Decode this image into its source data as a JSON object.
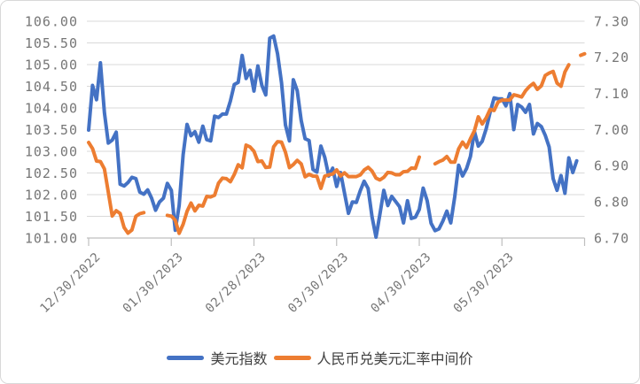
{
  "colors": {
    "background": "#ffffff",
    "border": "#d8d8d8",
    "gridline": "#d9d9d9",
    "axis_line": "#bfbfbf",
    "tick_label": "#767676",
    "legend_text": "#404040",
    "series_blue": "#4472C4",
    "series_orange": "#ED7D31"
  },
  "chart_data": {
    "type": "line",
    "grid": true,
    "legend_position": "bottom",
    "x_tick_labels": [
      "12/30/2022",
      "01/30/2023",
      "02/28/2023",
      "03/30/2023",
      "04/30/2023",
      "05/30/2023"
    ],
    "left_axis": {
      "min": 101.0,
      "max": 106.0,
      "step": 0.5,
      "ticks": [
        "106.00",
        "105.50",
        "105.00",
        "104.50",
        "104.00",
        "103.50",
        "103.00",
        "102.50",
        "102.00",
        "101.50",
        "101.00"
      ]
    },
    "right_axis": {
      "min": 6.7,
      "max": 7.3,
      "step": 0.1,
      "ticks": [
        "7.30",
        "7.20",
        "7.10",
        "7.00",
        "6.90",
        "6.80",
        "6.70"
      ]
    },
    "x_dates": [
      "12/30",
      "01/03",
      "01/04",
      "01/05",
      "01/06",
      "01/09",
      "01/10",
      "01/11",
      "01/12",
      "01/13",
      "01/16",
      "01/17",
      "01/18",
      "01/19",
      "01/20",
      "01/23",
      "01/24",
      "01/25",
      "01/26",
      "01/27",
      "01/30",
      "01/31",
      "02/01",
      "02/02",
      "02/03",
      "02/06",
      "02/07",
      "02/08",
      "02/09",
      "02/10",
      "02/13",
      "02/14",
      "02/15",
      "02/16",
      "02/17",
      "02/20",
      "02/21",
      "02/22",
      "02/23",
      "02/24",
      "02/27",
      "02/28",
      "03/01",
      "03/02",
      "03/03",
      "03/06",
      "03/07",
      "03/08",
      "03/09",
      "03/10",
      "03/13",
      "03/14",
      "03/15",
      "03/16",
      "03/17",
      "03/20",
      "03/21",
      "03/22",
      "03/23",
      "03/24",
      "03/27",
      "03/28",
      "03/29",
      "03/30",
      "03/31",
      "04/03",
      "04/04",
      "04/05",
      "04/06",
      "04/07",
      "04/10",
      "04/11",
      "04/12",
      "04/13",
      "04/14",
      "04/17",
      "04/18",
      "04/19",
      "04/20",
      "04/21",
      "04/24",
      "04/25",
      "04/26",
      "04/27",
      "04/28",
      "05/01",
      "05/02",
      "05/03",
      "05/04",
      "05/05",
      "05/08",
      "05/09",
      "05/10",
      "05/11",
      "05/12",
      "05/15",
      "05/16",
      "05/17",
      "05/18",
      "05/19",
      "05/22",
      "05/23",
      "05/24",
      "05/25",
      "05/26",
      "05/29",
      "05/30",
      "05/31",
      "06/01",
      "06/02",
      "06/05",
      "06/06",
      "06/07",
      "06/08",
      "06/09",
      "06/12",
      "06/13",
      "06/14",
      "06/15",
      "06/16",
      "06/19",
      "06/20",
      "06/21",
      "06/22",
      "06/23",
      "06/26",
      "06/27"
    ],
    "series": [
      {
        "name": "美元指数",
        "axis": "left",
        "color": "#4472C4",
        "values": [
          103.49,
          104.52,
          104.19,
          105.04,
          103.89,
          103.19,
          103.26,
          103.44,
          102.24,
          102.2,
          102.28,
          102.4,
          102.37,
          102.06,
          102.01,
          102.11,
          101.92,
          101.64,
          101.83,
          101.92,
          102.26,
          102.1,
          101.18,
          101.75,
          102.92,
          103.62,
          103.36,
          103.45,
          103.21,
          103.58,
          103.27,
          103.24,
          103.81,
          103.78,
          103.86,
          103.86,
          104.16,
          104.54,
          104.59,
          105.21,
          104.68,
          104.87,
          104.39,
          104.97,
          104.52,
          104.3,
          105.61,
          105.66,
          105.25,
          104.58,
          103.61,
          103.24,
          104.65,
          104.4,
          103.71,
          103.29,
          103.25,
          102.58,
          102.52,
          103.12,
          102.86,
          102.43,
          102.61,
          102.19,
          102.51,
          102.04,
          101.57,
          101.83,
          101.82,
          102.09,
          102.31,
          102.14,
          101.49,
          101.02,
          101.55,
          102.1,
          101.75,
          101.96,
          101.84,
          101.72,
          101.35,
          101.86,
          101.45,
          101.48,
          101.66,
          102.15,
          101.86,
          101.34,
          101.17,
          101.21,
          101.39,
          101.62,
          101.35,
          101.95,
          102.68,
          102.43,
          102.6,
          102.88,
          103.46,
          103.12,
          103.23,
          103.52,
          103.9,
          104.23,
          104.21,
          104.21,
          104.05,
          104.33,
          103.5,
          104.08,
          104.02,
          103.9,
          104.08,
          103.4,
          103.64,
          103.57,
          103.37,
          103.1,
          102.37,
          102.1,
          102.44,
          102.03,
          102.85,
          102.51,
          102.78,
          null,
          null
        ]
      },
      {
        "name": "人民币兑美元汇率中间价",
        "axis": "right",
        "color": "#ED7D31",
        "values": [
          6.9646,
          6.9475,
          6.9131,
          6.9117,
          6.8912,
          6.8265,
          6.7611,
          6.7756,
          6.768,
          6.7292,
          6.7135,
          6.7222,
          6.7602,
          6.7674,
          6.7702,
          null,
          null,
          null,
          null,
          null,
          6.7626,
          6.7604,
          6.7492,
          6.713,
          6.7382,
          6.7737,
          6.7967,
          6.7752,
          6.7905,
          6.7884,
          6.8151,
          6.8136,
          6.8183,
          6.8519,
          6.8659,
          6.8643,
          6.8557,
          6.8759,
          6.9028,
          6.8942,
          6.9572,
          6.9519,
          6.94,
          6.9117,
          6.913,
          6.8951,
          6.8964,
          6.9525,
          6.9666,
          6.9655,
          6.9375,
          6.8949,
          6.9032,
          6.9149,
          6.9052,
          6.8694,
          6.8763,
          6.8715,
          6.8709,
          6.8374,
          6.8714,
          6.8749,
          6.8771,
          6.8886,
          6.8717,
          6.8805,
          6.8699,
          6.8702,
          6.8699,
          6.8747,
          6.8882,
          6.8956,
          6.8854,
          6.8658,
          6.8606,
          6.8679,
          6.8814,
          6.8803,
          6.8752,
          6.8752,
          6.8835,
          6.8847,
          6.8937,
          6.8926,
          6.924,
          null,
          null,
          null,
          6.9054,
          6.9114,
          6.9158,
          6.9255,
          6.9101,
          6.9101,
          6.9468,
          6.9654,
          6.9506,
          6.9748,
          6.9967,
          7.0356,
          7.0157,
          7.0326,
          7.056,
          7.0529,
          7.076,
          7.0818,
          7.0818,
          7.0821,
          7.0965,
          7.0939,
          7.0904,
          7.1075,
          7.1196,
          7.128,
          7.1115,
          7.1212,
          7.1498,
          7.1566,
          7.1612,
          7.1289,
          7.1201,
          7.1596,
          7.1795,
          null,
          null,
          7.2056,
          7.2098
        ]
      }
    ]
  },
  "legend": {
    "items": [
      {
        "label": "美元指数",
        "color": "#4472C4"
      },
      {
        "label": "人民币兑美元汇率中间价",
        "color": "#ED7D31"
      }
    ]
  }
}
